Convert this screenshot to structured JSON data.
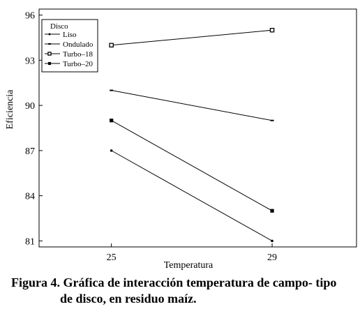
{
  "chart_data": {
    "type": "line",
    "x": [
      25,
      29
    ],
    "xlabel": "Temperatura",
    "ylabel": "Eficiencia",
    "xticks": [
      "25",
      "29"
    ],
    "yticks": [
      "81",
      "84",
      "87",
      "90",
      "93",
      "96"
    ],
    "xlim": [
      23.2,
      31.1
    ],
    "ylim": [
      80.6,
      96.4
    ],
    "grid": false,
    "legend": {
      "title": "Disco",
      "placement": "top-left"
    },
    "series": [
      {
        "name": "Liso",
        "values": [
          87.0,
          81.0
        ],
        "marker": "dot"
      },
      {
        "name": "Ondulado",
        "values": [
          91.0,
          89.0
        ],
        "marker": "dash"
      },
      {
        "name": "Turbo–18",
        "values": [
          94.0,
          95.0
        ],
        "marker": "open-square"
      },
      {
        "name": "Turbo–20",
        "values": [
          89.0,
          83.0
        ],
        "marker": "filled-square"
      }
    ],
    "colors": {
      "line": "#000000"
    }
  },
  "caption": {
    "line1": "Figura 4. Gráfica de interacción temperatura de campo- tipo",
    "line2": "de disco, en residuo maíz."
  }
}
